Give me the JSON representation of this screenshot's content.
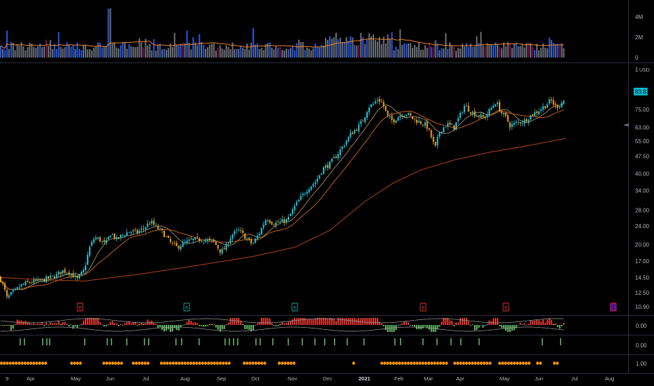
{
  "chart_data": {
    "type": "candlestick",
    "currency": "USD",
    "last_price": "83.83",
    "price_axis_ticks": [
      "10.90",
      "12.50",
      "14.50",
      "17.00",
      "20.00",
      "24.00",
      "28.00",
      "34.00",
      "40.00",
      "47.50",
      "55.00",
      "63.00",
      "75.00"
    ],
    "price_axis_top_label": "1",
    "volume_axis_ticks": [
      "4M",
      "2M",
      "0"
    ],
    "osc1_axis_label": "0.00",
    "osc2_axis_label": "0.00",
    "osc3_axis_label": "1.00",
    "x_ticks": [
      "9",
      "Apr",
      "May",
      "Jun",
      "Jul",
      "Aug",
      "Sep",
      "Oct",
      "Nov",
      "Dec",
      "2021",
      "Feb",
      "Mar",
      "Apr",
      "May",
      "Jun",
      "Jul",
      "Aug"
    ],
    "earnings_markers": [
      "E",
      "E",
      "E",
      "E",
      "E"
    ],
    "price_path": [
      [
        0,
        14.5
      ],
      [
        6,
        13.0
      ],
      [
        10,
        11.8
      ],
      [
        14,
        12.2
      ],
      [
        20,
        12.6
      ],
      [
        30,
        13.4
      ],
      [
        40,
        13.8
      ],
      [
        55,
        14.0
      ],
      [
        70,
        14.4
      ],
      [
        80,
        14.8
      ],
      [
        90,
        15.5
      ],
      [
        100,
        15.2
      ],
      [
        110,
        14.2
      ],
      [
        120,
        15.6
      ],
      [
        128,
        19.5
      ],
      [
        135,
        21.5
      ],
      [
        142,
        21.0
      ],
      [
        150,
        20.0
      ],
      [
        158,
        22.5
      ],
      [
        166,
        21.0
      ],
      [
        175,
        22.0
      ],
      [
        185,
        22.8
      ],
      [
        195,
        22.5
      ],
      [
        205,
        23.5
      ],
      [
        215,
        25.0
      ],
      [
        222,
        23.8
      ],
      [
        232,
        22.5
      ],
      [
        242,
        20.5
      ],
      [
        252,
        19.5
      ],
      [
        262,
        20.2
      ],
      [
        275,
        21.0
      ],
      [
        290,
        21.0
      ],
      [
        305,
        20.5
      ],
      [
        315,
        18.6
      ],
      [
        322,
        19.5
      ],
      [
        330,
        22.0
      ],
      [
        340,
        23.0
      ],
      [
        350,
        21.5
      ],
      [
        360,
        20.0
      ],
      [
        370,
        22.5
      ],
      [
        380,
        26.0
      ],
      [
        390,
        24.5
      ],
      [
        400,
        25.0
      ],
      [
        410,
        25.5
      ],
      [
        420,
        29.0
      ],
      [
        430,
        32.0
      ],
      [
        440,
        35.0
      ],
      [
        450,
        37.0
      ],
      [
        460,
        42.0
      ],
      [
        470,
        44.0
      ],
      [
        480,
        48.0
      ],
      [
        490,
        53.0
      ],
      [
        500,
        59.0
      ],
      [
        510,
        63.0
      ],
      [
        518,
        68.0
      ],
      [
        525,
        77.0
      ],
      [
        532,
        79.0
      ],
      [
        538,
        83.0
      ],
      [
        545,
        80.0
      ],
      [
        552,
        70.0
      ],
      [
        560,
        67.0
      ],
      [
        570,
        71.0
      ],
      [
        580,
        72.0
      ],
      [
        590,
        68.0
      ],
      [
        600,
        66.0
      ],
      [
        608,
        64.0
      ],
      [
        614,
        58.0
      ],
      [
        620,
        51.0
      ],
      [
        627,
        61.0
      ],
      [
        637,
        65.0
      ],
      [
        647,
        63.0
      ],
      [
        655,
        70.0
      ],
      [
        662,
        78.0
      ],
      [
        672,
        73.0
      ],
      [
        680,
        71.0
      ],
      [
        690,
        69.0
      ],
      [
        700,
        76.0
      ],
      [
        707,
        81.0
      ],
      [
        714,
        73.0
      ],
      [
        720,
        70.0
      ],
      [
        727,
        64.0
      ],
      [
        737,
        66.0
      ],
      [
        747,
        67.0
      ],
      [
        757,
        71.0
      ],
      [
        767,
        74.0
      ],
      [
        777,
        78.0
      ],
      [
        785,
        82.0
      ],
      [
        792,
        77.0
      ],
      [
        799,
        79.0
      ],
      [
        806,
        83.8
      ]
    ],
    "volume_avg_label": "volume moving average"
  }
}
